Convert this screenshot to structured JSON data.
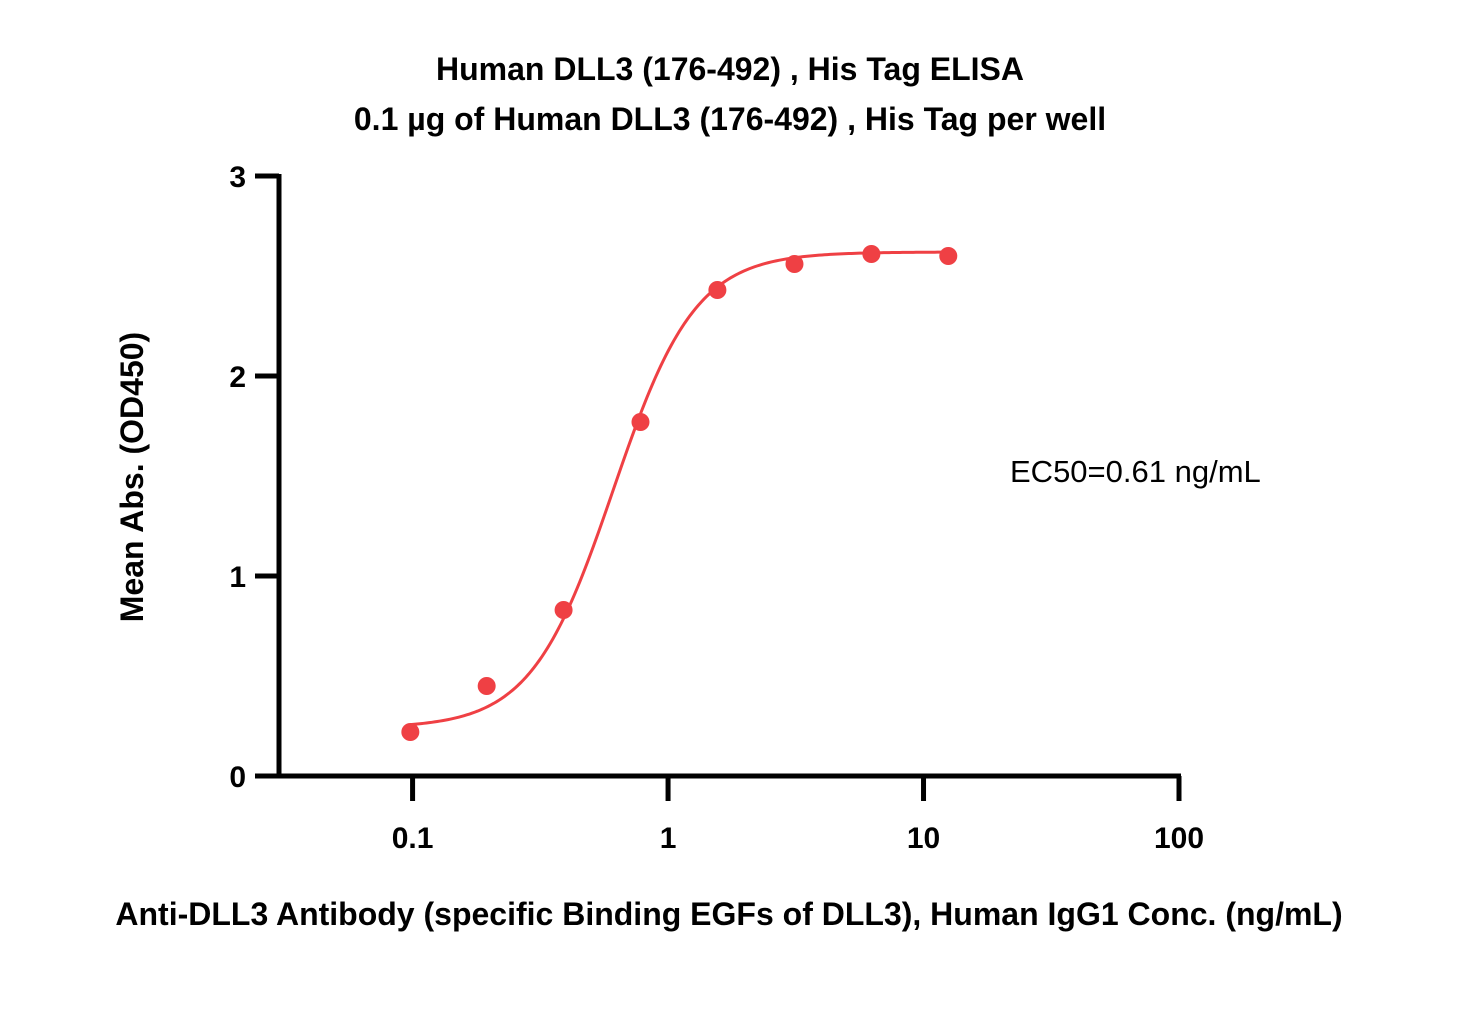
{
  "chart_data": {
    "type": "scatter",
    "title": "Human DLL3 (176-492) , His Tag ELISA",
    "subtitle": "0.1 µg of Human DLL3 (176-492) , His Tag per well",
    "xlabel": "Anti-DLL3 Antibody (specific Binding EGFs of DLL3), Human IgG1 Conc. (ng/mL)",
    "ylabel": "Mean Abs. (OD450)",
    "x_scale": "log",
    "xlim": [
      0.03,
      100
    ],
    "ylim": [
      0,
      3
    ],
    "x_ticks": [
      "0.1",
      "1",
      "10",
      "100"
    ],
    "y_ticks": [
      "0",
      "1",
      "2",
      "3"
    ],
    "grid": false,
    "annotation": "EC50=0.61 ng/mL",
    "color": "#ef4044",
    "series": [
      {
        "x": [
          0.098,
          0.195,
          0.39,
          0.78,
          1.56,
          3.125,
          6.25,
          12.5
        ],
        "y": [
          0.22,
          0.45,
          0.83,
          1.77,
          2.43,
          2.56,
          2.61,
          2.6
        ]
      }
    ],
    "fit": {
      "model": "4PL",
      "bottom": 0.24,
      "top": 2.62,
      "ec50": 0.61,
      "hill": 2.7,
      "x_range": [
        0.098,
        12.5
      ]
    }
  }
}
